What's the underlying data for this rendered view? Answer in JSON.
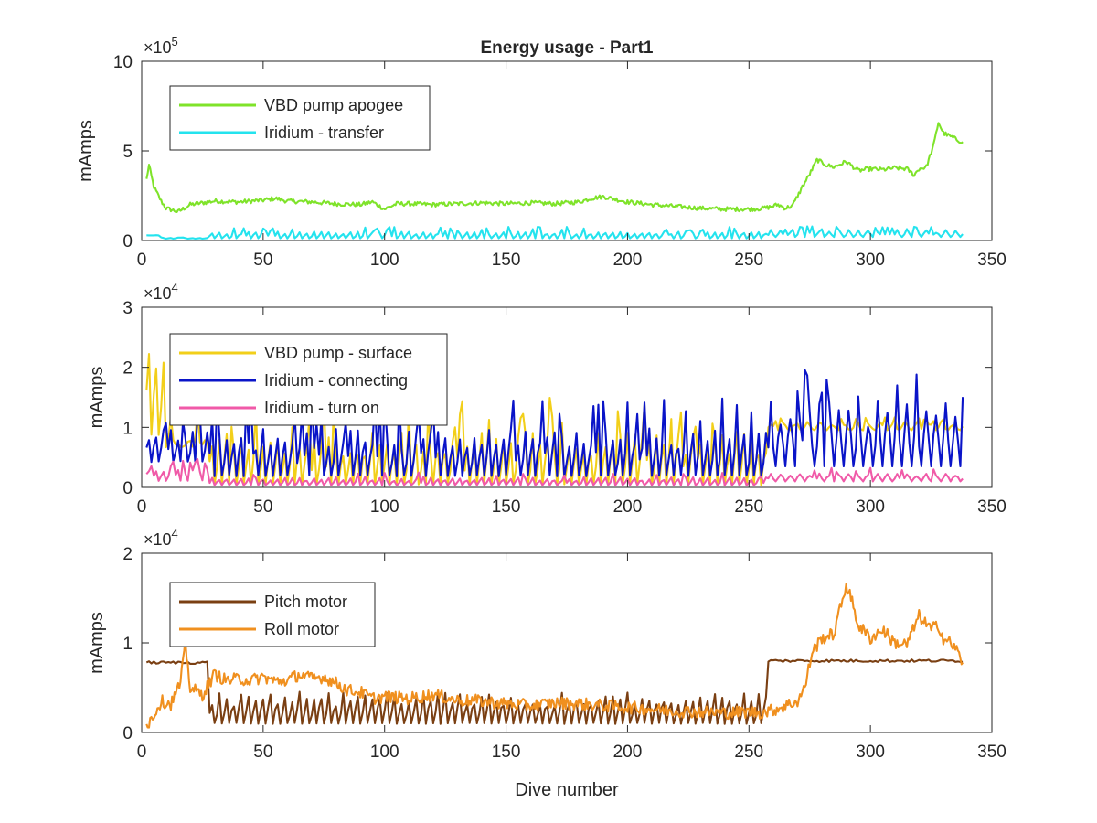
{
  "figure": {
    "title": "Energy usage - Part1",
    "xlabel": "Dive number"
  },
  "chart_data": [
    {
      "type": "line",
      "ylabel": "mAmps",
      "exponent_base": "×10",
      "exponent": "5",
      "xlim": [
        0,
        350
      ],
      "ylim": [
        0,
        1000000
      ],
      "x_ticks": [
        "0",
        "50",
        "100",
        "150",
        "200",
        "250",
        "300",
        "350"
      ],
      "y_ticks": [
        "0",
        "5",
        "10"
      ],
      "y_tick_values": [
        0,
        500000,
        1000000
      ],
      "grid": false,
      "legend_position": "top-left",
      "series": [
        {
          "name": "VBD pump apogee",
          "color": "#7fe32a",
          "pattern": "smooth",
          "x": [
            2,
            3,
            5,
            8,
            10,
            15,
            20,
            30,
            40,
            50,
            55,
            60,
            70,
            80,
            90,
            95,
            100,
            105,
            110,
            120,
            130,
            140,
            150,
            160,
            170,
            180,
            185,
            190,
            195,
            200,
            210,
            220,
            230,
            240,
            250,
            255,
            258,
            262,
            265,
            268,
            272,
            275,
            278,
            282,
            285,
            290,
            295,
            300,
            305,
            310,
            315,
            318,
            320,
            323,
            326,
            328,
            330,
            333,
            336,
            338
          ],
          "y": [
            340000,
            420000,
            300000,
            220000,
            180000,
            160000,
            200000,
            220000,
            215000,
            225000,
            235000,
            220000,
            215000,
            205000,
            200000,
            215000,
            175000,
            205000,
            205000,
            200000,
            205000,
            210000,
            205000,
            210000,
            205000,
            215000,
            235000,
            245000,
            230000,
            215000,
            200000,
            190000,
            180000,
            175000,
            175000,
            178000,
            185000,
            200000,
            180000,
            195000,
            300000,
            370000,
            450000,
            420000,
            410000,
            440000,
            390000,
            400000,
            395000,
            405000,
            400000,
            365000,
            400000,
            410000,
            530000,
            660000,
            600000,
            580000,
            560000,
            550000
          ],
          "jitter": 12000
        },
        {
          "name": "Iridium - transfer",
          "color": "#24e3ee",
          "pattern": "spiky",
          "x_start": 2,
          "x_end": 338,
          "step": 1,
          "regions": [
            {
              "from": 2,
              "to": 8,
              "base": 20000,
              "amp": 20000,
              "period": 2
            },
            {
              "from": 8,
              "to": 28,
              "base": 10000,
              "amp": 5000,
              "period": 3
            },
            {
              "from": 28,
              "to": 258,
              "base": 10000,
              "amp": 45000,
              "period": 3
            },
            {
              "from": 258,
              "to": 338,
              "base": 20000,
              "amp": 40000,
              "period": 4
            }
          ]
        }
      ]
    },
    {
      "type": "line",
      "ylabel": "mAmps",
      "exponent_base": "×10",
      "exponent": "4",
      "xlim": [
        0,
        350
      ],
      "ylim": [
        0,
        30000
      ],
      "x_ticks": [
        "0",
        "50",
        "100",
        "150",
        "200",
        "250",
        "300",
        "350"
      ],
      "y_ticks": [
        "0",
        "1",
        "2",
        "3"
      ],
      "y_tick_values": [
        0,
        10000,
        20000,
        30000
      ],
      "grid": false,
      "legend_position": "top-left",
      "series": [
        {
          "name": "VBD pump - surface",
          "color": "#f2cf1a",
          "pattern": "spiky",
          "x_start": 2,
          "x_end": 338,
          "step": 1,
          "regions": [
            {
              "from": 2,
              "to": 10,
              "base": 8000,
              "amp": 17000,
              "period": 3
            },
            {
              "from": 10,
              "to": 28,
              "base": 5000,
              "amp": 6000,
              "period": 2
            },
            {
              "from": 28,
              "to": 258,
              "base": 0,
              "amp": 10000,
              "period": 3
            },
            {
              "from": 258,
              "to": 338,
              "base": 9500,
              "amp": 1500,
              "period": 5
            }
          ]
        },
        {
          "name": "Iridium - connecting",
          "color": "#0a14c8",
          "pattern": "spiky",
          "x_start": 2,
          "x_end": 338,
          "step": 1,
          "regions": [
            {
              "from": 2,
              "to": 28,
              "base": 4000,
              "amp": 6000,
              "period": 3
            },
            {
              "from": 28,
              "to": 258,
              "base": 1500,
              "amp": 9000,
              "period": 3
            },
            {
              "from": 258,
              "to": 338,
              "base": 3500,
              "amp": 11000,
              "period": 4
            }
          ]
        },
        {
          "name": "Iridium - turn on",
          "color": "#f05aa8",
          "pattern": "spiky",
          "x_start": 2,
          "x_end": 338,
          "step": 1,
          "regions": [
            {
              "from": 2,
              "to": 28,
              "base": 1000,
              "amp": 2500,
              "period": 3
            },
            {
              "from": 28,
              "to": 258,
              "base": 300,
              "amp": 1500,
              "period": 3
            },
            {
              "from": 258,
              "to": 338,
              "base": 1000,
              "amp": 1500,
              "period": 4
            }
          ]
        }
      ]
    },
    {
      "type": "line",
      "ylabel": "mAmps",
      "exponent_base": "×10",
      "exponent": "4",
      "xlim": [
        0,
        350
      ],
      "ylim": [
        0,
        20000
      ],
      "x_ticks": [
        "0",
        "50",
        "100",
        "150",
        "200",
        "250",
        "300",
        "350"
      ],
      "y_ticks": [
        "0",
        "1",
        "2"
      ],
      "y_tick_values": [
        0,
        10000,
        20000
      ],
      "grid": false,
      "legend_position": "top-left",
      "series": [
        {
          "name": "Pitch motor",
          "color": "#7a3f12",
          "pattern": "mixed",
          "x_start": 2,
          "x_end": 338,
          "step": 1,
          "regions": [
            {
              "from": 2,
              "to": 28,
              "type": "flat",
              "base": 7800,
              "amp": 300
            },
            {
              "from": 28,
              "to": 258,
              "type": "oscillate",
              "base": 800,
              "amp": 4000,
              "period": 3
            },
            {
              "from": 258,
              "to": 338,
              "type": "flat",
              "base": 8000,
              "amp": 300
            }
          ]
        },
        {
          "name": "Roll motor",
          "color": "#f0901f",
          "pattern": "smooth",
          "x": [
            2,
            4,
            8,
            12,
            16,
            18,
            20,
            25,
            30,
            35,
            40,
            45,
            50,
            55,
            60,
            65,
            70,
            75,
            80,
            85,
            90,
            95,
            100,
            110,
            120,
            130,
            140,
            150,
            160,
            170,
            180,
            190,
            200,
            210,
            220,
            230,
            240,
            250,
            255,
            260,
            265,
            270,
            273,
            276,
            280,
            285,
            290,
            292,
            295,
            300,
            305,
            310,
            315,
            320,
            325,
            328,
            330,
            333,
            336,
            338
          ],
          "y": [
            800,
            1500,
            3500,
            3200,
            5500,
            9800,
            5000,
            4200,
            6500,
            5800,
            6000,
            5800,
            6200,
            5700,
            5800,
            6500,
            6000,
            6200,
            5500,
            4700,
            4500,
            3800,
            4000,
            3800,
            4200,
            3600,
            3500,
            3200,
            3000,
            3300,
            3200,
            3000,
            2800,
            2600,
            2400,
            2300,
            2200,
            2300,
            2200,
            2500,
            3000,
            3500,
            5000,
            9000,
            10500,
            11000,
            16500,
            15000,
            12000,
            10500,
            11500,
            10000,
            9800,
            13000,
            11500,
            12000,
            10500,
            10000,
            9000,
            7800
          ],
          "jitter": 700
        }
      ]
    }
  ]
}
